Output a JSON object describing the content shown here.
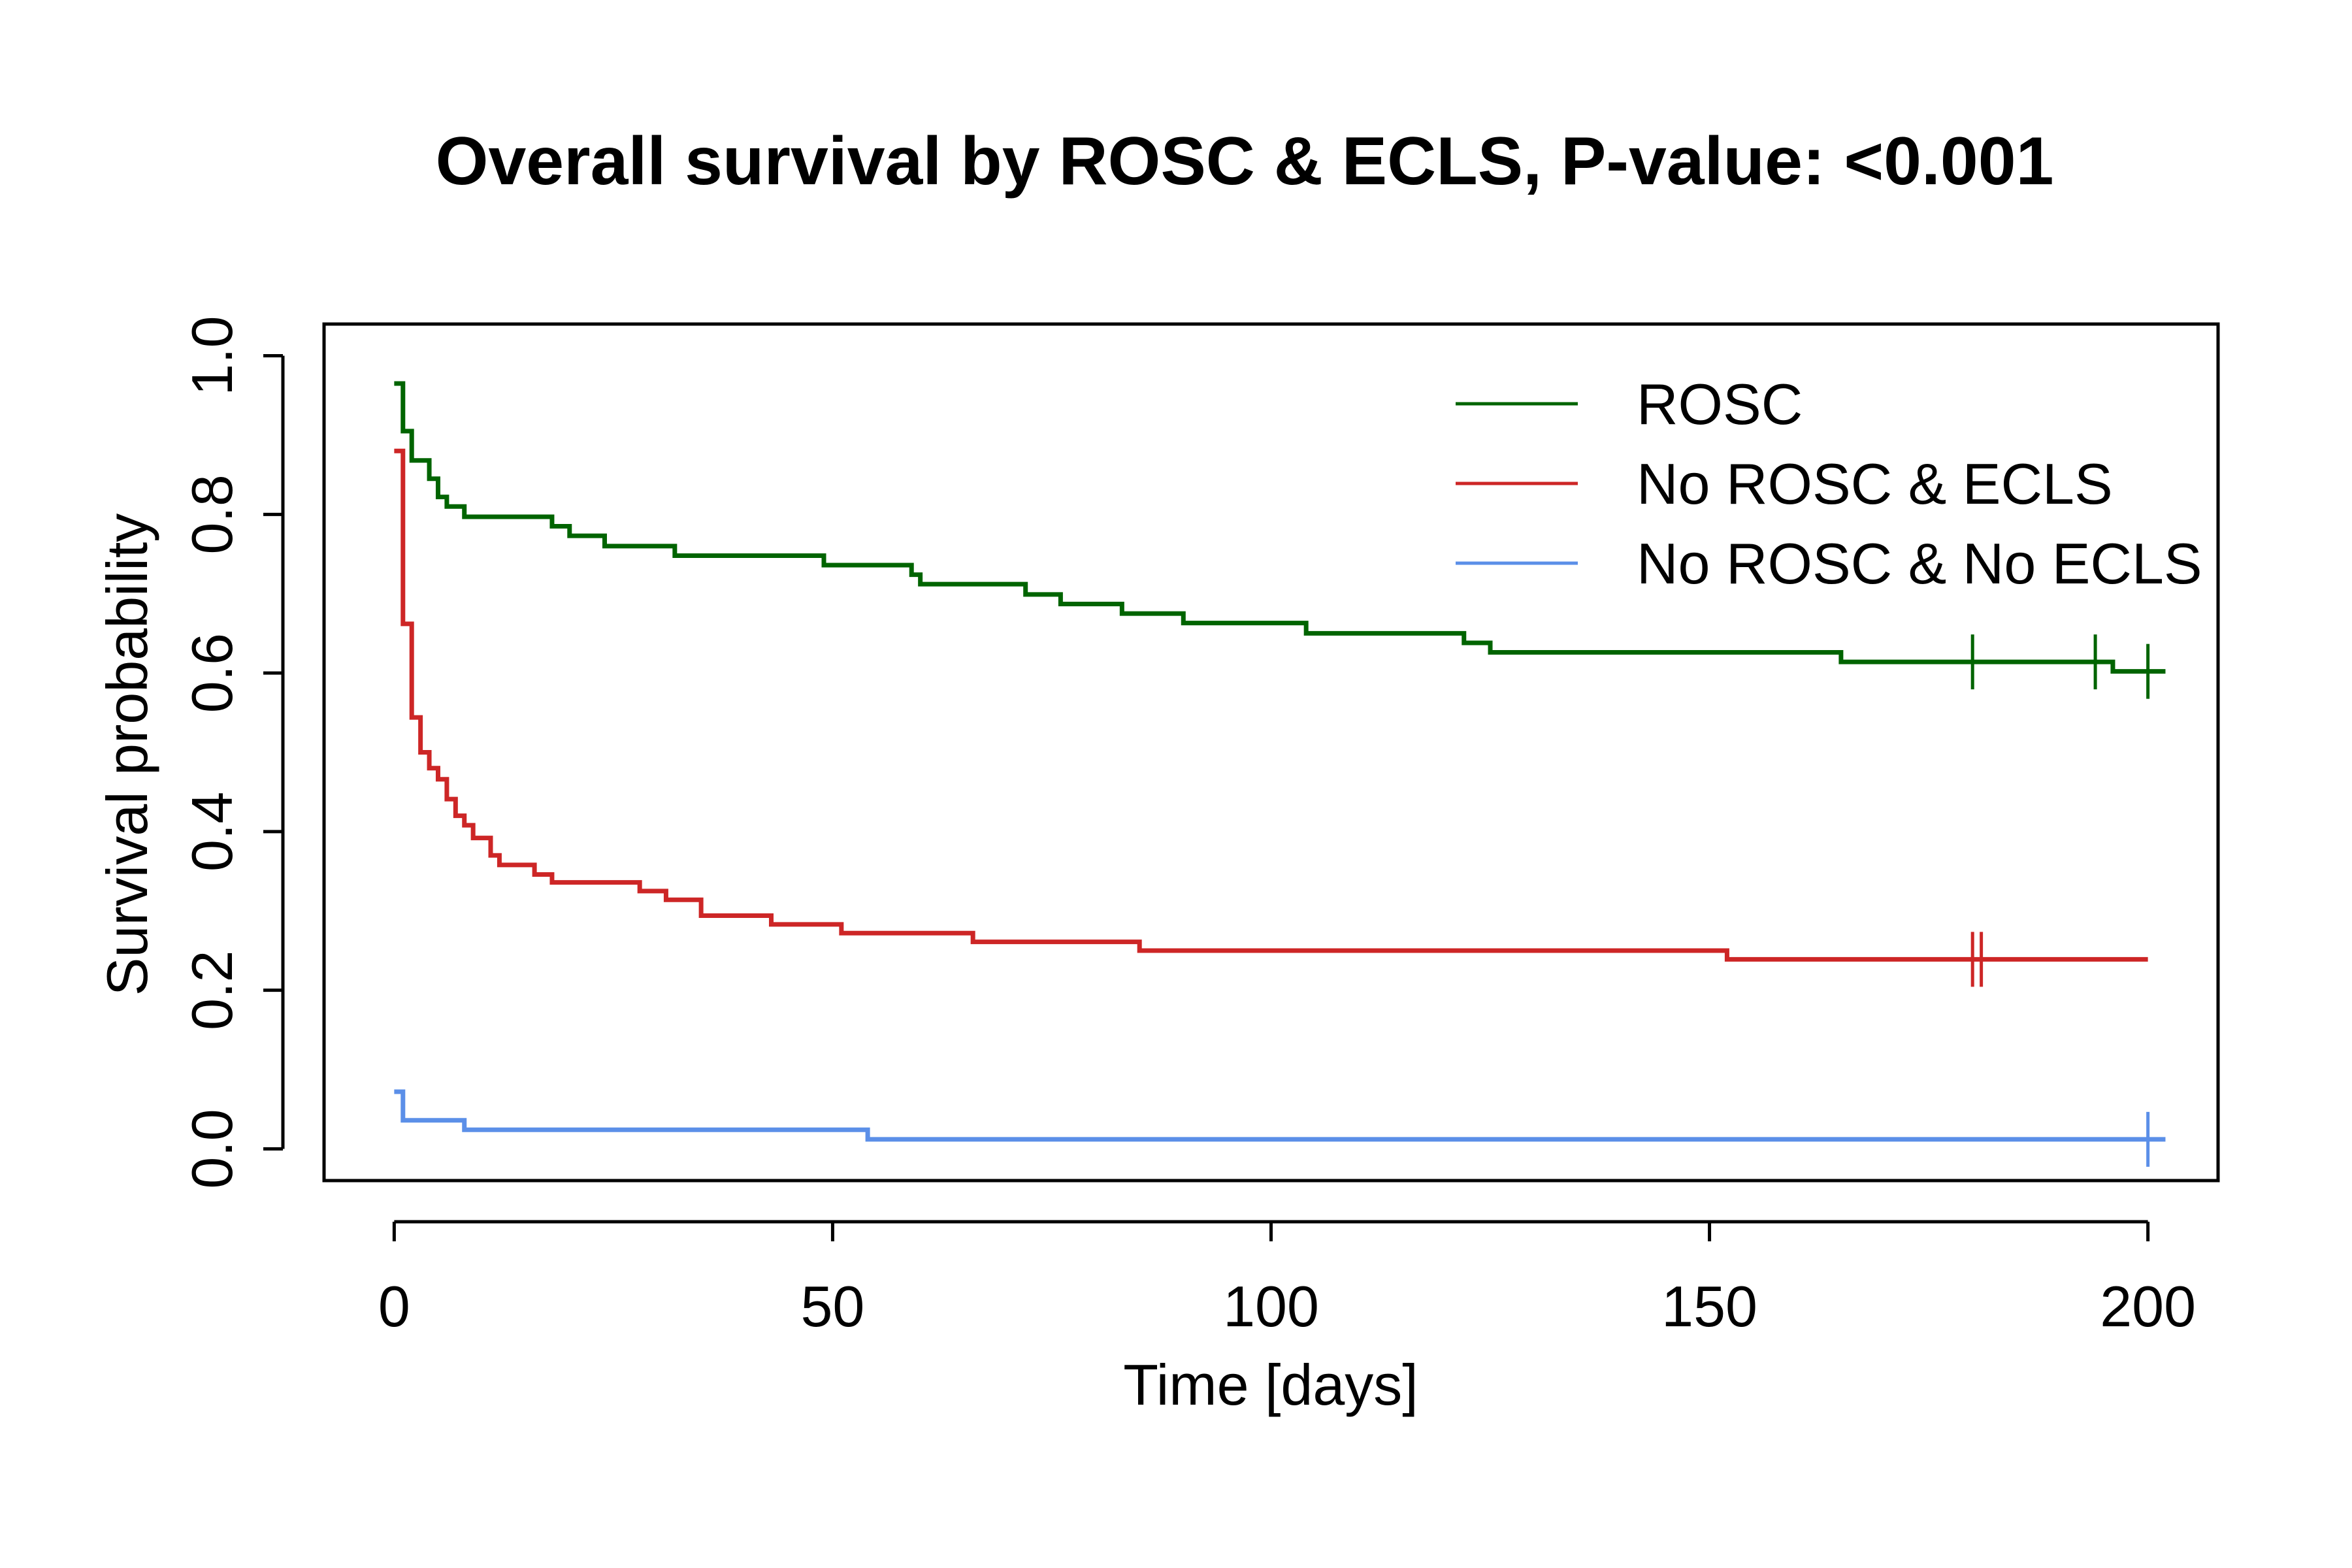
{
  "chart_data": {
    "type": "line",
    "title": "Overall survival by ROSC & ECLS, P-value: <0.001",
    "xlabel": "Time [days]",
    "ylabel": "Survival probability",
    "xlim": [
      -8,
      208
    ],
    "ylim": [
      -0.04,
      1.04
    ],
    "xticks": [
      0,
      50,
      100,
      150,
      200
    ],
    "xtick_labels": [
      "0",
      "50",
      "100",
      "150",
      "200"
    ],
    "yticks": [
      0,
      0.2,
      0.4,
      0.6,
      0.8,
      1.0
    ],
    "ytick_labels": [
      "0.0",
      "0.2",
      "0.4",
      "0.6",
      "0.8",
      "1.0"
    ],
    "grid": false,
    "legend_position": "top-right",
    "step": true,
    "series": [
      {
        "name": "ROSC",
        "color": "#006400",
        "x": [
          0,
          1,
          2,
          4,
          5,
          6,
          8,
          18,
          20,
          24,
          32,
          49,
          59,
          60,
          72,
          76,
          83,
          90,
          104,
          122,
          125,
          165,
          194,
          196,
          202
        ],
        "y": [
          0.965,
          0.905,
          0.868,
          0.845,
          0.822,
          0.81,
          0.797,
          0.785,
          0.773,
          0.76,
          0.748,
          0.736,
          0.724,
          0.712,
          0.699,
          0.687,
          0.675,
          0.663,
          0.65,
          0.638,
          0.626,
          0.614,
          0.614,
          0.602,
          0.602
        ],
        "censor_x": [
          180,
          194,
          200
        ]
      },
      {
        "name": "No ROSC & ECLS",
        "color": "#cd2626",
        "x": [
          0,
          1,
          2,
          3,
          4,
          5,
          6,
          7,
          8,
          9,
          11,
          12,
          16,
          18,
          28,
          31,
          35,
          43,
          51,
          66,
          85,
          152,
          200
        ],
        "y": [
          0.88,
          0.662,
          0.544,
          0.5,
          0.48,
          0.466,
          0.441,
          0.42,
          0.408,
          0.392,
          0.37,
          0.358,
          0.346,
          0.336,
          0.325,
          0.314,
          0.294,
          0.283,
          0.272,
          0.261,
          0.25,
          0.239,
          0.239
        ],
        "censor_x": [
          180,
          181
        ]
      },
      {
        "name": "No ROSC & No ECLS",
        "color": "#5b8fe8",
        "x": [
          0,
          1,
          8,
          54,
          202
        ],
        "y": [
          0.072,
          0.036,
          0.024,
          0.012,
          0.012
        ],
        "censor_x": [
          200
        ]
      }
    ]
  }
}
